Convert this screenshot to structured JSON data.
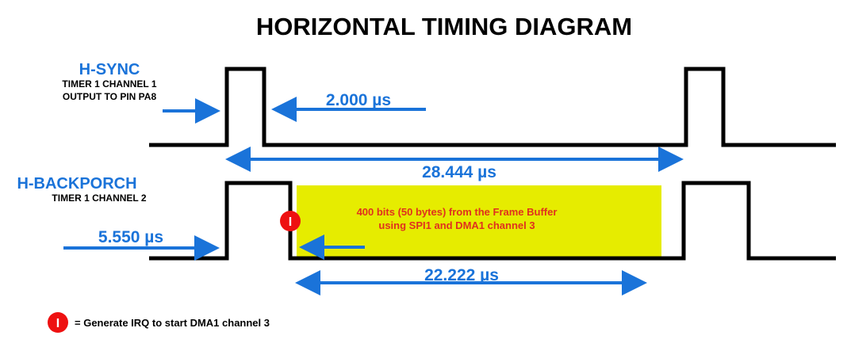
{
  "title": "HORIZONTAL TIMING DIAGRAM",
  "hsync": {
    "name": "H-SYNC",
    "line1": "TIMER 1 CHANNEL 1",
    "line2": "OUTPUT TO PIN PA8",
    "pulse_width_label": "2.000 µs",
    "period_label": "28.444 µs"
  },
  "hbackporch": {
    "name": "H-BACKPORCH",
    "line1": "TIMER 1 CHANNEL 2",
    "delay_label": "5.550 µs",
    "active_label": "22.222 µs"
  },
  "framebuffer": {
    "line1": "400 bits (50 bytes) from the Frame Buffer",
    "line2": "using SPI1 and DMA1 channel 3",
    "highlight_color": "#e6ec00",
    "text_color": "#e0301e"
  },
  "irq_marker": {
    "symbol": "I",
    "color": "#ee1111"
  },
  "legend": {
    "symbol": "I",
    "text": "= Generate IRQ to start DMA1 channel 3"
  },
  "colors": {
    "accent_blue": "#1a73d9",
    "signal_black": "#000000"
  }
}
